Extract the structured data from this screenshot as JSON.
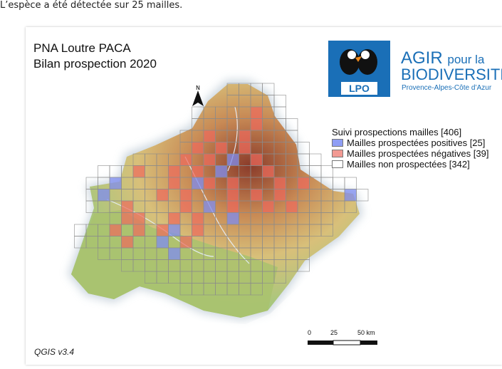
{
  "caption": "L’espèce a été détectée sur 25 mailles.",
  "map": {
    "title_line1": "PNA Loutre PACA",
    "title_line2": "Bilan prospection 2020",
    "north_label": "N",
    "software": "QGIS v3.4"
  },
  "logos": {
    "lpo": "LPO",
    "agir": "AGIR",
    "pour_la": "pour la",
    "biodiversite": "BIODIVERSITÉ",
    "region": "Provence-Alpes-Côte d’Azur"
  },
  "legend": {
    "title": "Suivi prospections mailles [406]",
    "items": [
      {
        "label": "Mailles prospectées positives [25]",
        "color": "#8f9ef5"
      },
      {
        "label": "Mailles prospectées négatives [39]",
        "color": "#f29a93"
      },
      {
        "label": "Mailles non prospectées [342]",
        "color": "#ffffff"
      }
    ]
  },
  "scalebar": {
    "ticks": [
      "0",
      "25",
      "50 km"
    ]
  },
  "colors": {
    "positive": "#7d8cf0",
    "negative": "#ee6a5c",
    "logo_blue": "#1a6fb7"
  }
}
